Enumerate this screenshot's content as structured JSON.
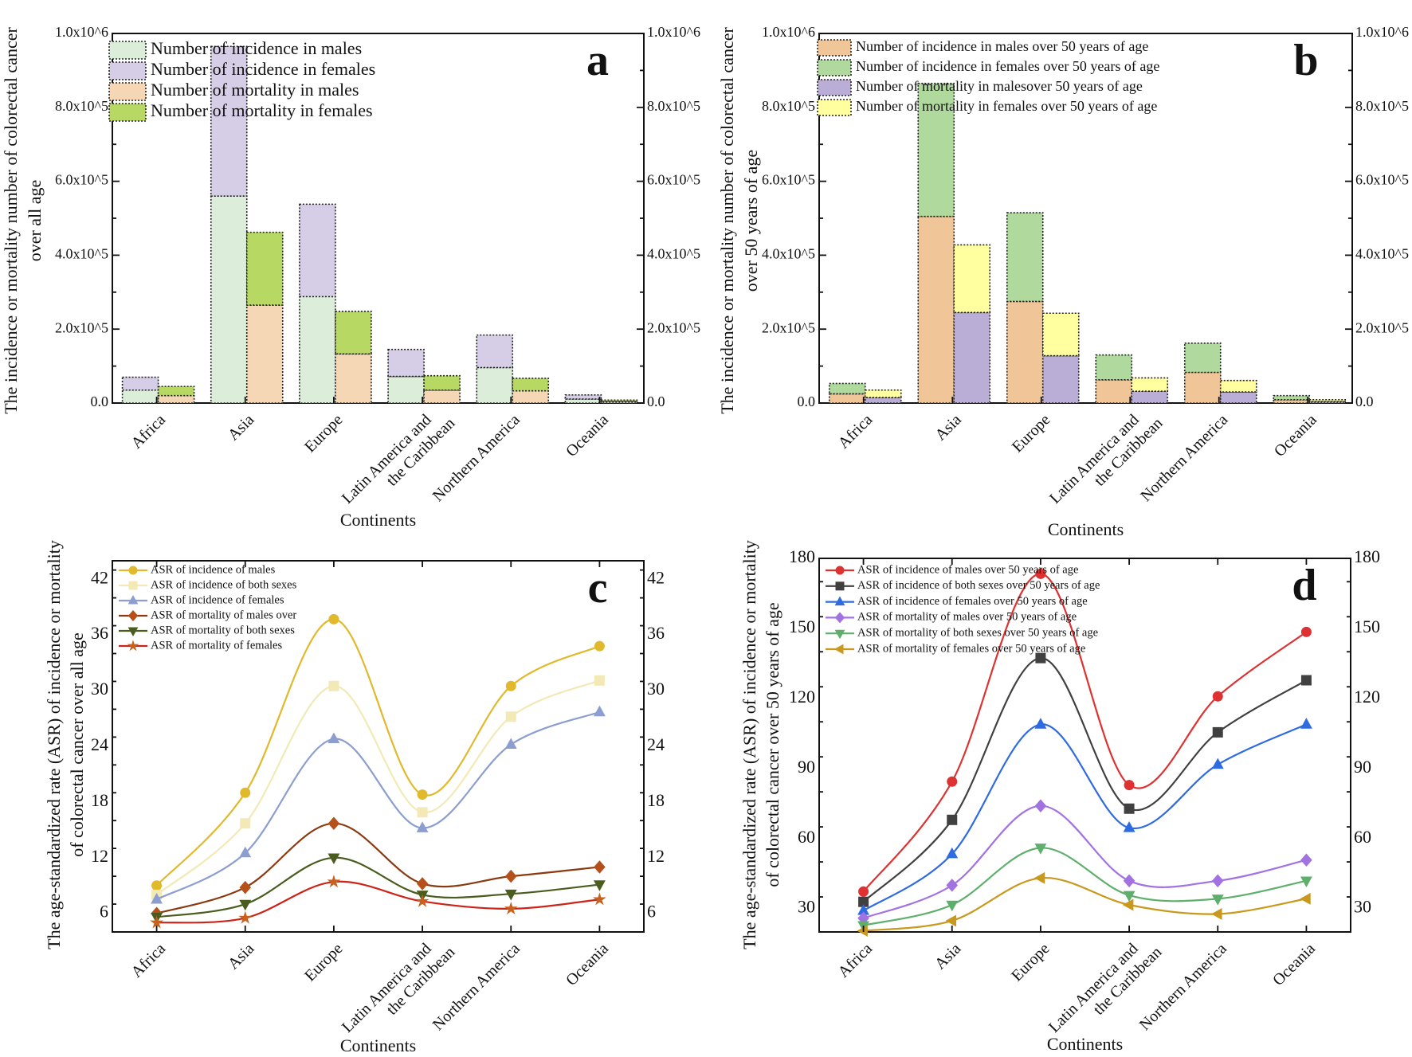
{
  "chart_data": [
    {
      "panel_label": "a",
      "type": "bar",
      "stacked": true,
      "categories": [
        "Africa",
        "Asia",
        "Europe",
        "Latin America and\nthe Caribbean",
        "Northern America",
        "Oceania"
      ],
      "xlabel": "Continents",
      "ylabel": [
        "The incidence or mortality number of colorectal cancer",
        "over all age"
      ],
      "ylim": [
        0,
        1000000
      ],
      "yticks": [
        0,
        200000,
        400000,
        600000,
        800000,
        1000000
      ],
      "ytick_labels": [
        "0.0",
        "2.0x10^5",
        "4.0x10^5",
        "6.0x10^5",
        "8.0x10^5",
        "1.0x10^6"
      ],
      "right_axis_mirrored": true,
      "legend_position": "top-left",
      "series": [
        {
          "name": "Number of incidence in males",
          "stack": "incidence",
          "color": "#DCEEDA",
          "values": [
            35000,
            560000,
            288000,
            72000,
            96000,
            11000
          ]
        },
        {
          "name": "Number of incidence in females",
          "stack": "incidence",
          "color": "#D6CEE6",
          "values": [
            35000,
            405000,
            250000,
            73000,
            88000,
            11000
          ]
        },
        {
          "name": "Number of mortality in males",
          "stack": "mortality",
          "color": "#F5D7B6",
          "values": [
            20000,
            265000,
            133000,
            35000,
            33000,
            4000
          ]
        },
        {
          "name": "Number of mortality in females",
          "stack": "mortality",
          "color": "#B7D862",
          "values": [
            25000,
            197000,
            115000,
            39000,
            34000,
            4000
          ]
        }
      ]
    },
    {
      "panel_label": "b",
      "type": "bar",
      "stacked": true,
      "categories": [
        "Africa",
        "Asia",
        "Europe",
        "Latin America and\nthe Caribbean",
        "Northern America",
        "Oceania"
      ],
      "xlabel": "Continents",
      "ylabel": [
        "The incidence or mortality number of colorectal cancer",
        "over 50 years of age"
      ],
      "ylim": [
        0,
        1000000
      ],
      "yticks": [
        0,
        200000,
        400000,
        600000,
        800000,
        1000000
      ],
      "ytick_labels": [
        "0.0",
        "2.0x10^5",
        "4.0x10^5",
        "6.0x10^5",
        "8.0x10^5",
        "1.0x10^6"
      ],
      "right_axis_mirrored": true,
      "legend_position": "top-left",
      "series": [
        {
          "name": "Number of incidence in males over 50 years of age",
          "stack": "incidence",
          "color": "#F0C597",
          "values": [
            25000,
            505000,
            275000,
            63000,
            83000,
            9000
          ]
        },
        {
          "name": "Number of incidence in females over 50 years of age",
          "stack": "incidence",
          "color": "#B0D99E",
          "values": [
            28000,
            360000,
            240000,
            67000,
            79000,
            11000
          ]
        },
        {
          "name": "Number of mortality in malesover 50 years of age",
          "stack": "mortality",
          "color": "#BBAED6",
          "values": [
            15000,
            245000,
            128000,
            32000,
            30000,
            4000
          ]
        },
        {
          "name": "Number of mortality in females over 50 years of age",
          "stack": "mortality",
          "color": "#FFFFA0",
          "values": [
            20000,
            183000,
            115000,
            36000,
            31000,
            5000
          ]
        }
      ]
    },
    {
      "panel_label": "c",
      "type": "line",
      "smooth": true,
      "categories": [
        "Africa",
        "Asia",
        "Europe",
        "Latin America and\nthe Caribbean",
        "Northern America",
        "Oceania"
      ],
      "xlabel": "Continents",
      "ylabel": [
        "The age-standardized rate (ASR) of incidence or mortality",
        "of colorectal cancer over all age"
      ],
      "ylim": [
        4,
        44
      ],
      "yticks": [
        6,
        12,
        18,
        24,
        30,
        36,
        42
      ],
      "ytick_labels": [
        "6",
        "12",
        "18",
        "24",
        "30",
        "36",
        "42"
      ],
      "right_axis_mirrored": true,
      "legend_position": "top-left",
      "series": [
        {
          "name": "ASR of incidence of males",
          "color": "#E1B92D",
          "marker": "circle",
          "values": [
            9.0,
            19.0,
            37.7,
            18.8,
            30.5,
            34.8
          ]
        },
        {
          "name": "ASR of incidence of both sexes",
          "color": "#F3E9B6",
          "marker": "square",
          "values": [
            8.0,
            15.7,
            30.5,
            16.9,
            27.2,
            31.1
          ]
        },
        {
          "name": "ASR of incidence of females",
          "color": "#8C9ECF",
          "marker": "triangle-up",
          "values": [
            7.5,
            12.5,
            24.8,
            15.2,
            24.2,
            27.7
          ]
        },
        {
          "name": "ASR of mortality of males over",
          "color": "#8A3A10",
          "marker_color": "#B5501A",
          "marker": "diamond",
          "values": [
            6.0,
            8.8,
            15.7,
            9.2,
            10.0,
            11.0
          ]
        },
        {
          "name": "ASR of mortality of both sexes",
          "color": "#4A5C1E",
          "marker": "triangle-down",
          "values": [
            5.6,
            7.0,
            12.0,
            8.0,
            8.1,
            9.1
          ]
        },
        {
          "name": "ASR of mortality of females",
          "color": "#CC2418",
          "marker_color": "#C8601E",
          "marker": "star",
          "values": [
            5.0,
            5.5,
            9.4,
            7.3,
            6.5,
            7.5
          ]
        }
      ]
    },
    {
      "panel_label": "d",
      "type": "line",
      "smooth": true,
      "categories": [
        "Africa",
        "Asia",
        "Europe",
        "Latin America and\nthe Caribbean",
        "Northern America",
        "Oceania"
      ],
      "xlabel": "Continents",
      "ylabel": [
        "The age-standardized rate (ASR) of incidence or mortality",
        "of colorectal cancer  over 50 years of age"
      ],
      "ylim": [
        20,
        180
      ],
      "yticks": [
        30,
        60,
        90,
        120,
        150,
        180
      ],
      "ytick_labels": [
        "30",
        "60",
        "90",
        "120",
        "150",
        "180"
      ],
      "right_axis_mirrored": true,
      "legend_position": "top-left",
      "series": [
        {
          "name": "ASR of incidence of males over 50 years of age",
          "color": "#DE3232",
          "marker": "circle",
          "values": [
            37.3,
            84.4,
            173.4,
            82.9,
            120.9,
            148.5
          ]
        },
        {
          "name": "ASR of incidence of both sexes over 50 years of age",
          "color": "#404040",
          "marker": "square",
          "values": [
            32.9,
            68.0,
            137.3,
            72.8,
            105.5,
            127.8
          ]
        },
        {
          "name": "ASR of incidence of females over 50 years of age",
          "color": "#2E6BE0",
          "marker": "triangle-up",
          "values": [
            29.1,
            53.4,
            108.9,
            64.6,
            91.7,
            108.9
          ]
        },
        {
          "name": "ASR of mortality of males over 50 years of age",
          "color": "#A272E2",
          "marker": "diamond",
          "values": [
            25.9,
            40.0,
            74.0,
            41.9,
            41.9,
            50.8
          ]
        },
        {
          "name": "ASR of mortality of both sexes over 50 years of age",
          "color": "#5FAF6C",
          "marker": "triangle-down",
          "values": [
            22.8,
            31.6,
            56.0,
            35.7,
            34.2,
            41.9
          ]
        },
        {
          "name": "ASR of mortality of females over 50 years of age",
          "color": "#C8991E",
          "marker": "triangle-left",
          "values": [
            20.5,
            24.8,
            43.1,
            31.6,
            27.7,
            34.2
          ]
        }
      ]
    }
  ]
}
